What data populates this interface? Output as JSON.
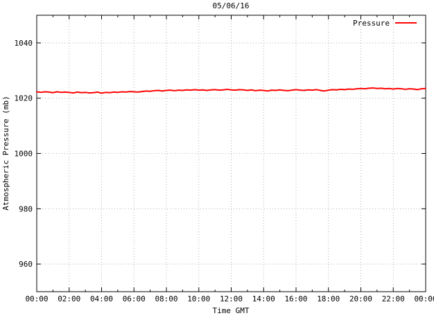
{
  "title": "05/06/16",
  "legend": {
    "label": "Pressure"
  },
  "colors": {
    "line": "#ff0000",
    "grid": "#b0b0b0",
    "border": "#000000",
    "background": "#ffffff",
    "text": "#000000"
  },
  "chart_data": {
    "type": "line",
    "title": "05/06/16",
    "xlabel": "Time GMT",
    "ylabel": "Atmospheric Pressure (mb)",
    "xlim_hours": [
      0,
      24
    ],
    "ylim": [
      950,
      1050
    ],
    "x_major_tick_hours": 2,
    "x_minor_tick_hours": 1,
    "x_tick_labels": [
      "00:00",
      "02:00",
      "04:00",
      "06:00",
      "08:00",
      "10:00",
      "12:00",
      "14:00",
      "16:00",
      "18:00",
      "20:00",
      "22:00",
      "00:00"
    ],
    "y_ticks": [
      960,
      980,
      1000,
      1020,
      1040
    ],
    "grid": true,
    "grid_style": "dotted",
    "legend_position": "top-right-inside",
    "series": [
      {
        "name": "Pressure",
        "color": "#ff0000",
        "x_start_hours": 0,
        "x_step_hours": 0.25,
        "values": [
          1022.3,
          1022.1,
          1022.3,
          1022.2,
          1022.0,
          1022.3,
          1022.1,
          1022.2,
          1022.1,
          1021.9,
          1022.2,
          1022.0,
          1022.1,
          1021.9,
          1022.0,
          1022.2,
          1021.8,
          1022.1,
          1022.0,
          1022.2,
          1022.1,
          1022.3,
          1022.2,
          1022.4,
          1022.3,
          1022.2,
          1022.4,
          1022.6,
          1022.5,
          1022.7,
          1022.8,
          1022.6,
          1022.8,
          1022.9,
          1022.7,
          1022.9,
          1022.8,
          1023.0,
          1022.9,
          1023.1,
          1022.9,
          1023.0,
          1022.8,
          1023.0,
          1023.1,
          1022.9,
          1023.0,
          1023.2,
          1023.0,
          1022.9,
          1023.1,
          1023.0,
          1022.8,
          1023.0,
          1022.7,
          1022.9,
          1022.8,
          1022.6,
          1022.9,
          1022.8,
          1023.0,
          1022.8,
          1022.7,
          1022.9,
          1023.1,
          1022.9,
          1022.8,
          1023.0,
          1022.9,
          1023.1,
          1022.8,
          1022.6,
          1022.9,
          1023.1,
          1023.0,
          1023.2,
          1023.1,
          1023.3,
          1023.2,
          1023.4,
          1023.5,
          1023.4,
          1023.6,
          1023.7,
          1023.5,
          1023.6,
          1023.4,
          1023.5,
          1023.3,
          1023.5,
          1023.4,
          1023.2,
          1023.4,
          1023.3,
          1023.1,
          1023.4,
          1023.5
        ]
      }
    ]
  }
}
